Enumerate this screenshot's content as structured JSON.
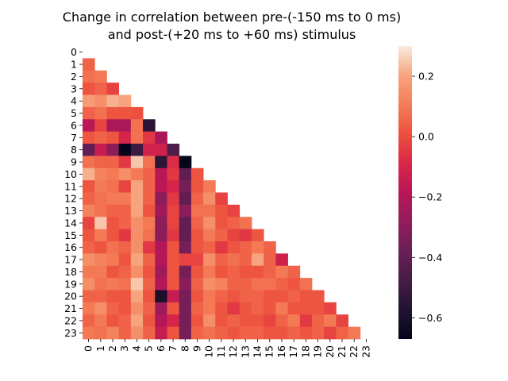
{
  "chart_data": {
    "type": "heatmap",
    "title_line1": "Change in correlation between pre-(-150 ms to 0 ms)",
    "title_line2": "and post-(+20 ms to +60 ms) stimulus",
    "xlabel": "",
    "ylabel": "",
    "x_tick_labels": [
      "0",
      "1",
      "2",
      "3",
      "4",
      "5",
      "6",
      "7",
      "8",
      "9",
      "10",
      "11",
      "12",
      "13",
      "14",
      "15",
      "16",
      "17",
      "18",
      "19",
      "20",
      "21",
      "22",
      "23"
    ],
    "y_tick_labels": [
      "0",
      "1",
      "2",
      "3",
      "4",
      "5",
      "6",
      "7",
      "8",
      "9",
      "10",
      "11",
      "12",
      "13",
      "14",
      "15",
      "16",
      "17",
      "18",
      "19",
      "20",
      "21",
      "22",
      "23"
    ],
    "mask": "upper triangle including diagonal is blank",
    "colormap": "rocket",
    "colorbar": {
      "vmin": -0.67,
      "vmax": 0.3,
      "tick_values": [
        0.2,
        0.0,
        -0.2,
        -0.4,
        -0.6
      ],
      "tick_labels": [
        "0.2",
        "0.0",
        "−0.2",
        "−0.4",
        "−0.6"
      ]
    },
    "values": [
      [],
      [
        0.05
      ],
      [
        0.08,
        0.1
      ],
      [
        0.02,
        0.05,
        -0.02
      ],
      [
        0.18,
        0.15,
        0.22,
        0.2
      ],
      [
        0.05,
        0.08,
        0.02,
        0.02,
        0.01
      ],
      [
        -0.18,
        -0.02,
        -0.22,
        -0.22,
        0.08,
        -0.55
      ],
      [
        0.02,
        0.05,
        0.02,
        -0.1,
        0.08,
        -0.05,
        -0.22
      ],
      [
        -0.4,
        -0.15,
        -0.3,
        -0.67,
        -0.5,
        -0.12,
        -0.12,
        -0.45
      ],
      [
        0.08,
        0.05,
        0.05,
        -0.05,
        0.25,
        0.08,
        -0.55,
        -0.08,
        -0.67
      ],
      [
        0.22,
        0.12,
        0.1,
        0.15,
        0.1,
        0.05,
        -0.18,
        -0.05,
        -0.4,
        0.02
      ],
      [
        0.02,
        0.1,
        0.08,
        -0.02,
        0.2,
        0.05,
        -0.18,
        -0.1,
        -0.35,
        0.02,
        0.1
      ],
      [
        0.05,
        0.08,
        0.1,
        0.1,
        0.2,
        0.05,
        -0.3,
        -0.05,
        -0.4,
        0.05,
        0.15,
        -0.02
      ],
      [
        0.12,
        0.08,
        0.05,
        0.05,
        0.2,
        0.02,
        -0.25,
        -0.02,
        -0.3,
        0.08,
        0.08,
        0.02,
        -0.02
      ],
      [
        -0.02,
        0.25,
        0.02,
        0.05,
        0.15,
        0.1,
        -0.3,
        -0.02,
        -0.4,
        0.05,
        0.15,
        0.02,
        0.05,
        0.08
      ],
      [
        0.02,
        0.1,
        0.02,
        -0.05,
        0.15,
        0.08,
        -0.3,
        -0.05,
        -0.4,
        0.02,
        0.1,
        0.05,
        -0.02,
        -0.05,
        0.02
      ],
      [
        0.05,
        0.02,
        0.08,
        0.05,
        0.15,
        -0.05,
        -0.2,
        0.02,
        -0.35,
        0.02,
        0.05,
        -0.05,
        0.02,
        0.05,
        0.1,
        0.05
      ],
      [
        0.15,
        0.12,
        0.1,
        0.02,
        0.2,
        0.05,
        -0.2,
        0.02,
        -0.02,
        -0.02,
        0.15,
        0.05,
        0.08,
        0.05,
        0.2,
        0.05,
        -0.12
      ],
      [
        0.1,
        0.1,
        0.02,
        0.05,
        0.15,
        0.02,
        -0.25,
        0.02,
        -0.35,
        0.02,
        0.1,
        0.02,
        0.05,
        0.02,
        0.02,
        0.05,
        0.1,
        0.05
      ],
      [
        0.15,
        0.08,
        0.1,
        0.08,
        0.25,
        0.05,
        -0.2,
        0.02,
        -0.3,
        0.05,
        0.15,
        0.12,
        0.05,
        0.05,
        0.08,
        0.08,
        0.05,
        0.02,
        0.08
      ],
      [
        0.05,
        0.05,
        0.02,
        0.02,
        0.2,
        0.02,
        -0.6,
        -0.15,
        -0.35,
        0.02,
        0.1,
        0.05,
        0.02,
        0.05,
        0.05,
        0.02,
        0.02,
        0.05,
        0.02,
        0.02
      ],
      [
        0.1,
        0.15,
        0.05,
        0.02,
        0.15,
        0.05,
        -0.25,
        0.02,
        -0.35,
        0.05,
        0.1,
        0.02,
        -0.05,
        0.02,
        0.05,
        0.02,
        0.1,
        0.02,
        0.02,
        0.02,
        -0.02
      ],
      [
        0.05,
        0.1,
        0.02,
        0.05,
        0.2,
        0.02,
        -0.2,
        -0.1,
        -0.35,
        0.02,
        0.15,
        0.02,
        0.05,
        0.02,
        0.02,
        -0.02,
        0.05,
        0.1,
        -0.05,
        0.05,
        0.1,
        -0.02
      ],
      [
        0.1,
        0.08,
        0.12,
        0.05,
        0.15,
        0.05,
        -0.15,
        0.02,
        -0.35,
        0.05,
        0.08,
        0.05,
        0.02,
        0.05,
        0.05,
        0.02,
        0.02,
        0.05,
        0.02,
        0.05,
        -0.02,
        0.05,
        0.1
      ]
    ]
  }
}
